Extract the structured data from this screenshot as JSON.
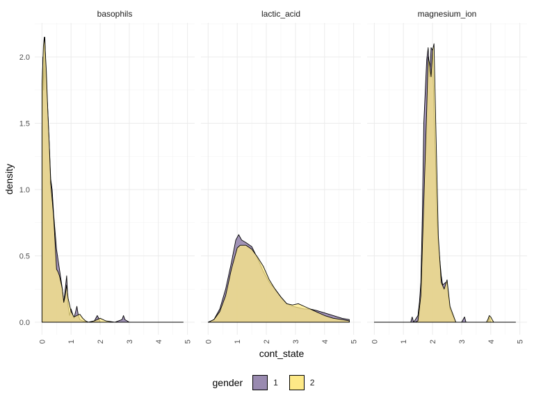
{
  "chart_data": {
    "type": "area",
    "xlabel": "cont_state",
    "ylabel": "density",
    "xlim": [
      0,
      5
    ],
    "ylim": [
      0,
      2.2
    ],
    "x_ticks": [
      "0",
      "1",
      "2",
      "3",
      "4",
      "5"
    ],
    "y_ticks": [
      "0.0",
      "0.5",
      "1.0",
      "1.5",
      "2.0"
    ],
    "grid": true,
    "legend": {
      "title": "gender",
      "position": "bottom",
      "entries": [
        {
          "label": "1",
          "color": "#998ab0"
        },
        {
          "label": "2",
          "color": "#fde987"
        }
      ]
    },
    "panels": [
      {
        "title": "basophils",
        "series": [
          {
            "name": "1",
            "x": [
              0,
              0.03,
              0.06,
              0.1,
              0.14,
              0.2,
              0.25,
              0.3,
              0.35,
              0.4,
              0.5,
              0.6,
              0.7,
              0.75,
              0.8,
              0.85,
              0.9,
              0.95,
              1.0,
              1.1,
              1.2,
              1.25,
              1.3,
              1.4,
              1.6,
              1.8,
              1.9,
              1.95,
              2.0,
              2.1,
              2.5,
              2.75,
              2.8,
              2.85,
              3.0,
              3.5,
              4.0,
              4.5,
              4.85
            ],
            "y": [
              1.47,
              2.0,
              1.75,
              2.15,
              1.85,
              1.6,
              1.35,
              1.08,
              1.0,
              0.82,
              0.55,
              0.4,
              0.25,
              0.15,
              0.25,
              0.35,
              0.12,
              0.05,
              0.1,
              0.03,
              0.12,
              0.05,
              0.02,
              0.01,
              0.0,
              0.01,
              0.05,
              0.03,
              0.0,
              0.0,
              0.0,
              0.02,
              0.05,
              0.02,
              0.0,
              0.0,
              0.0,
              0.0,
              0.0
            ]
          },
          {
            "name": "2",
            "x": [
              0,
              0.03,
              0.05,
              0.08,
              0.1,
              0.15,
              0.2,
              0.25,
              0.3,
              0.4,
              0.45,
              0.5,
              0.55,
              0.6,
              0.65,
              0.7,
              0.75,
              0.8,
              0.85,
              0.9,
              1.0,
              1.1,
              1.2,
              1.3,
              1.4,
              1.5,
              1.6,
              1.8,
              2.0,
              2.2,
              2.5,
              3.0,
              3.5,
              4.0,
              4.85
            ],
            "y": [
              1.8,
              1.95,
              2.08,
              2.15,
              2.1,
              1.9,
              1.6,
              1.35,
              1.05,
              0.8,
              0.6,
              0.4,
              0.38,
              0.35,
              0.3,
              0.25,
              0.15,
              0.2,
              0.28,
              0.18,
              0.08,
              0.04,
              0.05,
              0.06,
              0.03,
              0.01,
              0.0,
              0.01,
              0.03,
              0.01,
              0.0,
              0.0,
              0.0,
              0.0,
              0.0
            ]
          }
        ]
      },
      {
        "title": "lactic_acid",
        "series": [
          {
            "name": "1",
            "x": [
              0,
              0.2,
              0.4,
              0.6,
              0.8,
              0.95,
              1.05,
              1.15,
              1.3,
              1.5,
              1.7,
              1.9,
              2.1,
              2.3,
              2.5,
              2.7,
              2.9,
              3.1,
              3.3,
              3.5,
              3.7,
              4.0,
              4.3,
              4.6,
              4.85
            ],
            "y": [
              0.0,
              0.02,
              0.1,
              0.25,
              0.45,
              0.62,
              0.66,
              0.62,
              0.6,
              0.57,
              0.48,
              0.38,
              0.3,
              0.25,
              0.19,
              0.14,
              0.12,
              0.11,
              0.1,
              0.1,
              0.09,
              0.07,
              0.05,
              0.03,
              0.02
            ]
          },
          {
            "name": "2",
            "x": [
              0,
              0.2,
              0.4,
              0.6,
              0.8,
              1.0,
              1.1,
              1.2,
              1.3,
              1.5,
              1.7,
              1.9,
              2.1,
              2.3,
              2.5,
              2.7,
              2.9,
              3.1,
              3.3,
              3.5,
              3.7,
              4.0,
              4.3,
              4.6,
              4.85
            ],
            "y": [
              0.0,
              0.02,
              0.08,
              0.2,
              0.4,
              0.56,
              0.58,
              0.58,
              0.58,
              0.55,
              0.49,
              0.42,
              0.32,
              0.25,
              0.19,
              0.14,
              0.13,
              0.14,
              0.12,
              0.1,
              0.08,
              0.05,
              0.03,
              0.02,
              0.01
            ]
          }
        ]
      },
      {
        "title": "magnesium_ion",
        "series": [
          {
            "name": "1",
            "x": [
              0,
              1.0,
              1.25,
              1.3,
              1.35,
              1.5,
              1.55,
              1.6,
              1.65,
              1.7,
              1.8,
              1.85,
              1.9,
              1.95,
              2.0,
              2.05,
              2.1,
              2.15,
              2.2,
              2.3,
              2.35,
              2.45,
              2.5,
              2.6,
              2.8,
              3.0,
              3.1,
              3.15,
              3.2,
              3.5,
              3.9,
              3.95,
              4.0,
              4.05,
              4.85
            ],
            "y": [
              0.0,
              0.0,
              0.0,
              0.04,
              0.0,
              0.05,
              0.15,
              0.3,
              0.8,
              1.5,
              1.98,
              2.07,
              1.85,
              2.07,
              2.05,
              1.6,
              1.25,
              0.8,
              0.6,
              0.35,
              0.28,
              0.3,
              0.3,
              0.1,
              0.0,
              0.0,
              0.04,
              0.0,
              0.0,
              0.0,
              0.0,
              0.04,
              0.0,
              0.0,
              0.0
            ]
          },
          {
            "name": "2",
            "x": [
              0,
              1.0,
              1.4,
              1.5,
              1.6,
              1.7,
              1.8,
              1.85,
              1.9,
              1.95,
              2.0,
              2.05,
              2.1,
              2.2,
              2.3,
              2.4,
              2.5,
              2.6,
              2.8,
              3.2,
              3.85,
              3.9,
              3.95,
              4.0,
              4.05,
              4.1,
              4.85
            ],
            "y": [
              0.0,
              0.0,
              0.0,
              0.01,
              0.2,
              0.9,
              1.6,
              2.0,
              1.95,
              1.85,
              2.05,
              2.1,
              1.6,
              0.65,
              0.3,
              0.25,
              0.32,
              0.12,
              0.0,
              0.0,
              0.0,
              0.02,
              0.05,
              0.04,
              0.02,
              0.0,
              0.0
            ]
          }
        ]
      }
    ]
  }
}
